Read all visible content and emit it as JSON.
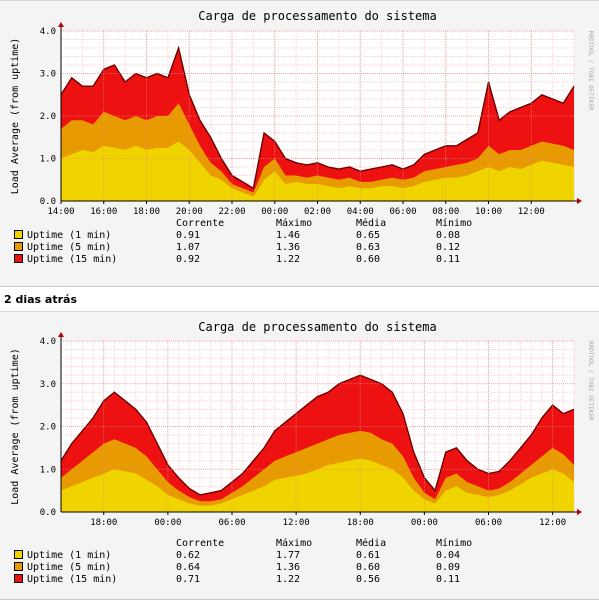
{
  "section_label": "2 dias atrás",
  "watermark": "RRDTOOL / TOBI OETIKER",
  "colors": {
    "uptime_1": "#f0d400",
    "uptime_5": "#e89b00",
    "uptime_15": "#ee1111",
    "line_15": "#6a0000",
    "grid_minor": "#ffcfcf",
    "grid_major": "#ee8b8b"
  },
  "legend_headers": [
    "Corrente",
    "Máximo",
    "Média",
    "Mínimo"
  ],
  "chart_data": [
    {
      "type": "area",
      "title": "Carga de processamento do sistema",
      "ylabel": "Load Average (from uptime)",
      "ylim": [
        0,
        4.0
      ],
      "y_ticks": [
        "0.0",
        "1.0",
        "2.0",
        "3.0",
        "4.0"
      ],
      "x_ticks": [
        "14:00",
        "16:00",
        "18:00",
        "20:00",
        "22:00",
        "00:00",
        "02:00",
        "04:00",
        "06:00",
        "08:00",
        "10:00",
        "12:00"
      ],
      "x_tick_hours": [
        0,
        2,
        4,
        6,
        8,
        10,
        12,
        14,
        16,
        18,
        20,
        22
      ],
      "x_hours": [
        0,
        0.5,
        1,
        1.5,
        2,
        2.5,
        3,
        3.5,
        4,
        4.5,
        5,
        5.5,
        6,
        6.5,
        7,
        7.5,
        8,
        8.5,
        9,
        9.5,
        10,
        10.5,
        11,
        11.5,
        12,
        12.5,
        13,
        13.5,
        14,
        14.5,
        15,
        15.5,
        16,
        16.5,
        17,
        17.5,
        18,
        18.5,
        19,
        19.5,
        20,
        20.5,
        21,
        21.5,
        22,
        22.5,
        23,
        23.5,
        24
      ],
      "series": [
        {
          "name": "Uptime (1 min)",
          "color": "uptime_1",
          "current": "0.91",
          "max": "1.46",
          "avg": "0.65",
          "min": "0.08",
          "values": [
            1.0,
            1.1,
            1.2,
            1.15,
            1.3,
            1.25,
            1.2,
            1.3,
            1.2,
            1.25,
            1.25,
            1.4,
            1.2,
            0.9,
            0.6,
            0.5,
            0.3,
            0.2,
            0.1,
            0.5,
            0.7,
            0.4,
            0.45,
            0.4,
            0.4,
            0.35,
            0.3,
            0.35,
            0.3,
            0.3,
            0.35,
            0.35,
            0.3,
            0.35,
            0.45,
            0.5,
            0.55,
            0.55,
            0.6,
            0.7,
            0.8,
            0.7,
            0.8,
            0.75,
            0.85,
            0.95,
            0.9,
            0.85,
            0.8
          ]
        },
        {
          "name": "Uptime (5 min)",
          "color": "uptime_5",
          "current": "1.07",
          "max": "1.36",
          "avg": "0.63",
          "min": "0.12",
          "values": [
            1.7,
            1.9,
            1.9,
            1.8,
            2.1,
            2.0,
            1.9,
            2.0,
            1.9,
            2.0,
            2.0,
            2.3,
            1.8,
            1.3,
            0.9,
            0.7,
            0.4,
            0.3,
            0.2,
            0.8,
            1.0,
            0.6,
            0.6,
            0.55,
            0.6,
            0.55,
            0.5,
            0.55,
            0.45,
            0.45,
            0.5,
            0.55,
            0.5,
            0.55,
            0.7,
            0.75,
            0.8,
            0.85,
            0.9,
            1.0,
            1.3,
            1.1,
            1.2,
            1.2,
            1.3,
            1.4,
            1.35,
            1.3,
            1.2
          ]
        },
        {
          "name": "Uptime (15 min)",
          "color": "uptime_15",
          "current": "0.92",
          "max": "1.22",
          "avg": "0.60",
          "min": "0.11",
          "values": [
            2.5,
            2.9,
            2.7,
            2.7,
            3.1,
            3.2,
            2.8,
            3.0,
            2.9,
            3.0,
            2.9,
            3.6,
            2.5,
            1.9,
            1.5,
            1.0,
            0.6,
            0.45,
            0.3,
            1.6,
            1.4,
            1.0,
            0.9,
            0.85,
            0.9,
            0.8,
            0.75,
            0.8,
            0.7,
            0.75,
            0.8,
            0.85,
            0.75,
            0.85,
            1.1,
            1.2,
            1.3,
            1.3,
            1.45,
            1.6,
            2.8,
            1.9,
            2.1,
            2.2,
            2.3,
            2.5,
            2.4,
            2.3,
            2.7
          ]
        }
      ]
    },
    {
      "type": "area",
      "title": "Carga de processamento do sistema",
      "ylabel": "Load Average (from uptime)",
      "ylim": [
        0,
        4.0
      ],
      "y_ticks": [
        "0.0",
        "1.0",
        "2.0",
        "3.0",
        "4.0"
      ],
      "x_ticks": [
        "18:00",
        "00:00",
        "06:00",
        "12:00",
        "18:00",
        "00:00",
        "06:00",
        "12:00"
      ],
      "x_tick_hours": [
        4,
        10,
        16,
        22,
        28,
        34,
        40,
        46
      ],
      "x_hours": [
        0,
        1,
        2,
        3,
        4,
        5,
        6,
        7,
        8,
        9,
        10,
        11,
        12,
        13,
        14,
        15,
        16,
        17,
        18,
        19,
        20,
        21,
        22,
        23,
        24,
        25,
        26,
        27,
        28,
        29,
        30,
        31,
        32,
        33,
        34,
        35,
        36,
        37,
        38,
        39,
        40,
        41,
        42,
        43,
        44,
        45,
        46,
        47,
        48
      ],
      "series": [
        {
          "name": "Uptime (1 min)",
          "color": "uptime_1",
          "current": "0.62",
          "max": "1.77",
          "avg": "0.61",
          "min": "0.04",
          "values": [
            0.5,
            0.6,
            0.7,
            0.8,
            0.9,
            1.0,
            0.95,
            0.9,
            0.75,
            0.6,
            0.4,
            0.3,
            0.2,
            0.15,
            0.15,
            0.2,
            0.3,
            0.4,
            0.5,
            0.6,
            0.75,
            0.8,
            0.85,
            0.9,
            1.0,
            1.1,
            1.15,
            1.2,
            1.25,
            1.2,
            1.1,
            1.0,
            0.8,
            0.5,
            0.3,
            0.2,
            0.5,
            0.6,
            0.45,
            0.4,
            0.35,
            0.4,
            0.5,
            0.65,
            0.8,
            0.9,
            1.0,
            0.9,
            0.7
          ]
        },
        {
          "name": "Uptime (5 min)",
          "color": "uptime_5",
          "current": "0.64",
          "max": "1.36",
          "avg": "0.60",
          "min": "0.09",
          "values": [
            0.8,
            1.0,
            1.2,
            1.4,
            1.6,
            1.7,
            1.6,
            1.5,
            1.3,
            1.0,
            0.7,
            0.5,
            0.35,
            0.25,
            0.25,
            0.3,
            0.45,
            0.6,
            0.8,
            1.0,
            1.2,
            1.3,
            1.4,
            1.5,
            1.6,
            1.7,
            1.8,
            1.85,
            1.9,
            1.85,
            1.7,
            1.6,
            1.3,
            0.8,
            0.45,
            0.3,
            0.8,
            0.9,
            0.7,
            0.6,
            0.5,
            0.55,
            0.7,
            0.9,
            1.1,
            1.3,
            1.5,
            1.35,
            1.1
          ]
        },
        {
          "name": "Uptime (15 min)",
          "color": "uptime_15",
          "current": "0.71",
          "max": "1.22",
          "avg": "0.56",
          "min": "0.11",
          "values": [
            1.2,
            1.6,
            1.9,
            2.2,
            2.6,
            2.8,
            2.6,
            2.4,
            2.1,
            1.6,
            1.1,
            0.8,
            0.55,
            0.4,
            0.45,
            0.5,
            0.7,
            0.9,
            1.2,
            1.5,
            1.9,
            2.1,
            2.3,
            2.5,
            2.7,
            2.8,
            3.0,
            3.1,
            3.2,
            3.1,
            3.0,
            2.8,
            2.3,
            1.4,
            0.8,
            0.5,
            1.4,
            1.5,
            1.2,
            1.0,
            0.9,
            0.95,
            1.2,
            1.5,
            1.8,
            2.2,
            2.5,
            2.3,
            2.4
          ]
        }
      ]
    }
  ]
}
